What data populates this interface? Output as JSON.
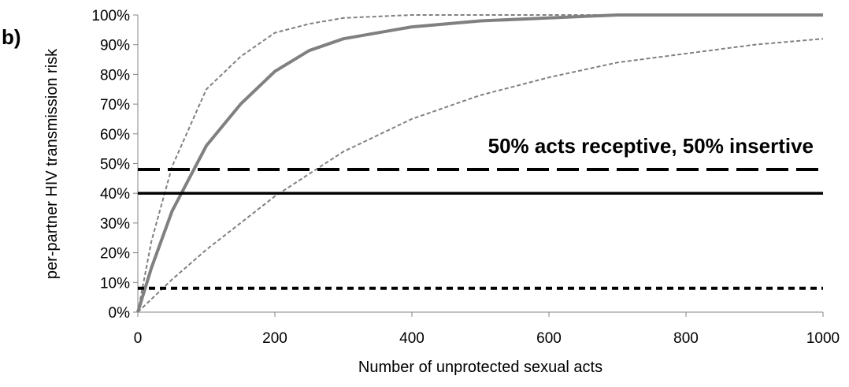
{
  "chart_data": {
    "type": "line",
    "panel_label": "b)",
    "annotation": "50% acts receptive, 50% insertive",
    "xlabel": "Number of unprotected sexual acts",
    "ylabel": "per-partner HIV transmission risk",
    "xlim": [
      0,
      1000
    ],
    "ylim": [
      0,
      1
    ],
    "x_ticks": [
      "0",
      "200",
      "400",
      "600",
      "800",
      "1000"
    ],
    "y_ticks": [
      "0%",
      "10%",
      "20%",
      "30%",
      "40%",
      "50%",
      "60%",
      "70%",
      "80%",
      "90%",
      "100%"
    ],
    "grid": false,
    "legend": "none",
    "series": [
      {
        "style": "solid-thick-gray",
        "color": "#808080",
        "x": [
          0,
          20,
          50,
          100,
          150,
          200,
          250,
          300,
          400,
          500,
          600,
          700,
          800,
          1000
        ],
        "y": [
          0,
          0.15,
          0.34,
          0.56,
          0.7,
          0.81,
          0.88,
          0.92,
          0.96,
          0.98,
          0.99,
          1.0,
          1.0,
          1.0
        ]
      },
      {
        "style": "dashed-thin-gray-upper",
        "color": "#808080",
        "x": [
          0,
          20,
          50,
          100,
          150,
          200,
          250,
          300,
          400,
          500,
          600,
          700,
          1000
        ],
        "y": [
          0,
          0.24,
          0.49,
          0.75,
          0.86,
          0.94,
          0.97,
          0.99,
          1.0,
          1.0,
          1.0,
          1.0,
          1.0
        ]
      },
      {
        "style": "dashed-thin-gray-lower",
        "color": "#808080",
        "x": [
          0,
          50,
          100,
          200,
          300,
          400,
          500,
          600,
          700,
          800,
          900,
          1000
        ],
        "y": [
          0,
          0.11,
          0.21,
          0.39,
          0.54,
          0.65,
          0.73,
          0.79,
          0.84,
          0.87,
          0.9,
          0.92
        ]
      },
      {
        "style": "long-dash-black",
        "color": "#000000",
        "x": [
          0,
          1000
        ],
        "y": [
          0.48,
          0.48
        ]
      },
      {
        "style": "solid-black",
        "color": "#000000",
        "x": [
          0,
          1000
        ],
        "y": [
          0.4,
          0.4
        ]
      },
      {
        "style": "short-dash-black",
        "color": "#000000",
        "x": [
          0,
          1000
        ],
        "y": [
          0.08,
          0.08
        ]
      }
    ]
  }
}
